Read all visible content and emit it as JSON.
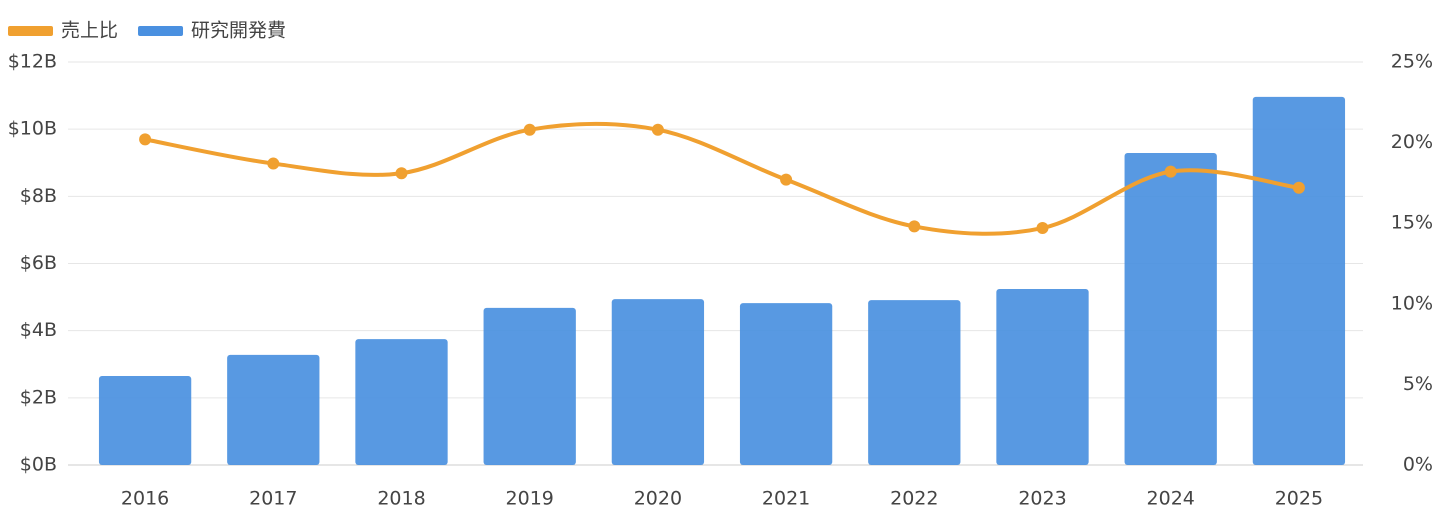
{
  "chart_data": {
    "type": "bar",
    "categories": [
      "2016",
      "2017",
      "2018",
      "2019",
      "2020",
      "2021",
      "2022",
      "2023",
      "2024",
      "2025"
    ],
    "series": [
      {
        "name": "売上比",
        "type": "line",
        "axis": "y2",
        "color": "#f0a030",
        "smooth": true,
        "values": [
          20.2,
          18.7,
          18.1,
          20.8,
          20.8,
          17.7,
          14.8,
          14.7,
          18.2,
          17.2
        ]
      },
      {
        "name": "研究開発費",
        "type": "bar",
        "color": "#4a90e0",
        "values": [
          2.65,
          3.28,
          3.75,
          4.68,
          4.94,
          4.82,
          4.91,
          5.24,
          9.29,
          10.96
        ]
      }
    ],
    "ylim": [
      0,
      12
    ],
    "yticks": [
      {
        "value": 0,
        "label": "$0B"
      },
      {
        "value": 2,
        "label": "$2B"
      },
      {
        "value": 4,
        "label": "$4B"
      },
      {
        "value": 6,
        "label": "$6B"
      },
      {
        "value": 8,
        "label": "$8B"
      },
      {
        "value": 10,
        "label": "$10B"
      },
      {
        "value": 12,
        "label": "$12B"
      }
    ],
    "y2lim": [
      0,
      25
    ],
    "y2ticks": [
      {
        "value": 0,
        "label": "0%"
      },
      {
        "value": 5,
        "label": "5%"
      },
      {
        "value": 10,
        "label": "10%"
      },
      {
        "value": 15,
        "label": "15%"
      },
      {
        "value": 20,
        "label": "20%"
      },
      {
        "value": 25,
        "label": "25%"
      }
    ],
    "grid": true,
    "legend": "top-left"
  }
}
